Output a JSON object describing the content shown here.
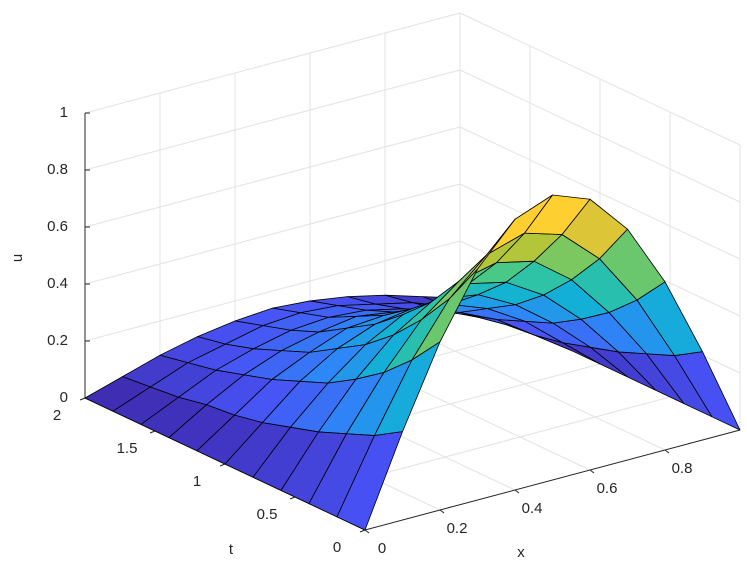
{
  "chart_data": {
    "type": "surface",
    "xlabel": "x",
    "ylabel": "t",
    "zlabel": "u",
    "x": [
      0,
      0.1,
      0.2,
      0.3,
      0.4,
      0.5,
      0.6,
      0.7,
      0.8,
      0.9,
      1
    ],
    "y": [
      0,
      0.2,
      0.4,
      0.6,
      0.8,
      1,
      1.2,
      1.4,
      1.6,
      1.8,
      2
    ],
    "z": [
      [
        0,
        0.31,
        0.59,
        0.81,
        0.95,
        1,
        0.95,
        0.81,
        0.59,
        0.31,
        0
      ],
      [
        0,
        0.25,
        0.48,
        0.66,
        0.78,
        0.82,
        0.78,
        0.66,
        0.48,
        0.25,
        0
      ],
      [
        0,
        0.21,
        0.39,
        0.54,
        0.64,
        0.67,
        0.64,
        0.54,
        0.39,
        0.21,
        0
      ],
      [
        0,
        0.17,
        0.32,
        0.44,
        0.52,
        0.55,
        0.52,
        0.44,
        0.32,
        0.17,
        0
      ],
      [
        0,
        0.14,
        0.26,
        0.36,
        0.43,
        0.45,
        0.43,
        0.36,
        0.26,
        0.14,
        0
      ],
      [
        0,
        0.11,
        0.22,
        0.3,
        0.35,
        0.37,
        0.35,
        0.3,
        0.22,
        0.11,
        0
      ],
      [
        0,
        0.09,
        0.18,
        0.24,
        0.29,
        0.3,
        0.29,
        0.24,
        0.18,
        0.09,
        0
      ],
      [
        0,
        0.08,
        0.15,
        0.2,
        0.23,
        0.25,
        0.23,
        0.2,
        0.15,
        0.08,
        0
      ],
      [
        0,
        0.06,
        0.12,
        0.16,
        0.19,
        0.2,
        0.19,
        0.16,
        0.12,
        0.06,
        0
      ],
      [
        0,
        0.05,
        0.1,
        0.13,
        0.16,
        0.17,
        0.16,
        0.13,
        0.1,
        0.05,
        0
      ],
      [
        0,
        0.04,
        0.08,
        0.11,
        0.13,
        0.14,
        0.13,
        0.11,
        0.08,
        0.04,
        0
      ]
    ],
    "xlim": [
      0,
      1
    ],
    "ylim": [
      0,
      2
    ],
    "zlim": [
      0,
      1
    ],
    "xticks": [
      0,
      0.2,
      0.4,
      0.6,
      0.8
    ],
    "yticks": [
      0,
      0.5,
      1,
      1.5,
      2
    ],
    "zticks": [
      0,
      0.2,
      0.4,
      0.6,
      0.8,
      1
    ],
    "colormap": "parula",
    "edgecolor": "#000000",
    "grid": true
  }
}
